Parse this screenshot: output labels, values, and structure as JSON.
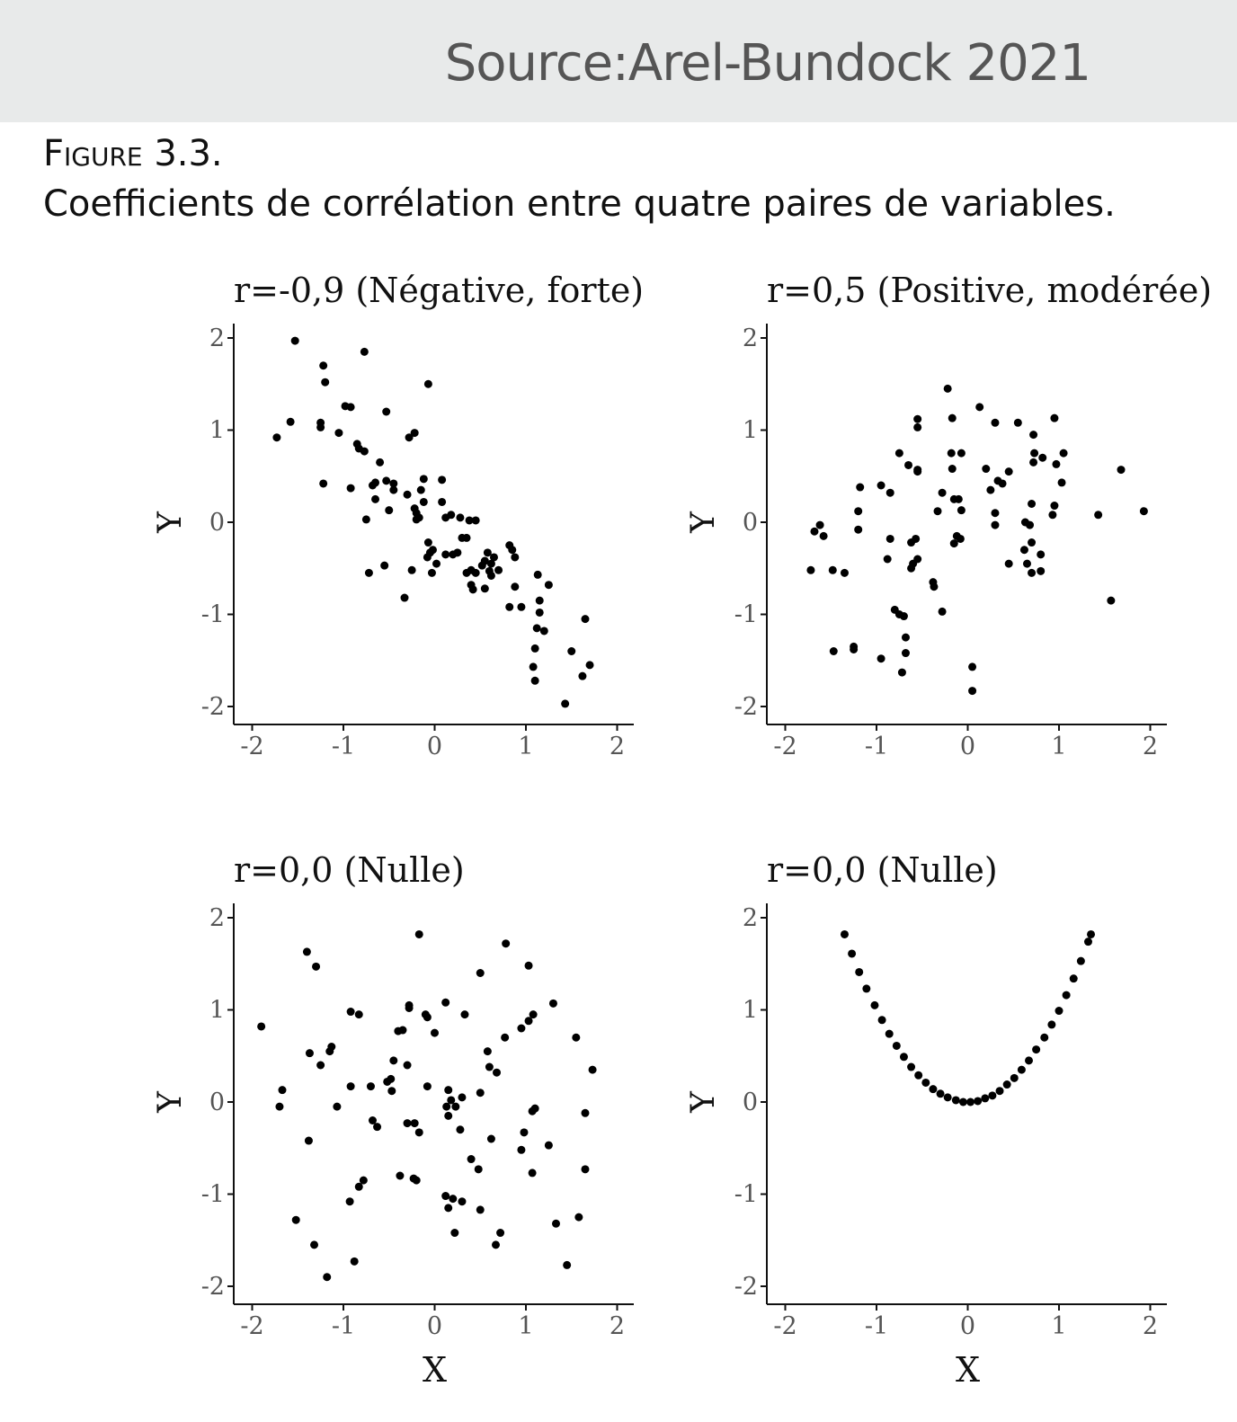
{
  "header": {
    "source": "Source:Arel-Bundock 2021"
  },
  "figure": {
    "label": "Figure 3.3.",
    "caption": "Coefficients de corrélation entre quatre paires de variables."
  },
  "chart_data": [
    {
      "type": "scatter",
      "title": "r=-0,9 (Négative, forte)",
      "xlabel": "",
      "ylabel": "Y",
      "xlim": [
        -2.2,
        2.2
      ],
      "ylim": [
        -2.2,
        2.2
      ],
      "xticks": [
        "-2",
        "-1",
        "0",
        "1",
        "2"
      ],
      "yticks": [
        "-2",
        "-1",
        "0",
        "1",
        "2"
      ],
      "grid": false,
      "points": [
        [
          -1.53,
          1.97
        ],
        [
          -0.77,
          1.85
        ],
        [
          -1.22,
          1.7
        ],
        [
          -1.2,
          1.52
        ],
        [
          -0.07,
          1.5
        ],
        [
          -0.98,
          1.26
        ],
        [
          -0.92,
          1.25
        ],
        [
          -0.53,
          1.2
        ],
        [
          -1.58,
          1.09
        ],
        [
          -1.25,
          1.08
        ],
        [
          -1.25,
          1.03
        ],
        [
          -1.05,
          0.97
        ],
        [
          -0.22,
          0.97
        ],
        [
          -1.73,
          0.92
        ],
        [
          -0.28,
          0.92
        ],
        [
          -0.85,
          0.85
        ],
        [
          -0.83,
          0.8
        ],
        [
          -0.77,
          0.77
        ],
        [
          -0.6,
          0.65
        ],
        [
          -0.12,
          0.47
        ],
        [
          0.08,
          0.46
        ],
        [
          -0.65,
          0.43
        ],
        [
          -0.53,
          0.45
        ],
        [
          -0.45,
          0.42
        ],
        [
          -1.22,
          0.42
        ],
        [
          -0.68,
          0.4
        ],
        [
          -0.92,
          0.37
        ],
        [
          -0.45,
          0.35
        ],
        [
          -0.15,
          0.35
        ],
        [
          -0.3,
          0.3
        ],
        [
          -0.65,
          0.25
        ],
        [
          -0.12,
          0.22
        ],
        [
          0.08,
          0.22
        ],
        [
          -0.22,
          0.15
        ],
        [
          -0.5,
          0.13
        ],
        [
          -0.2,
          0.1
        ],
        [
          0.18,
          0.08
        ],
        [
          0.28,
          0.05
        ],
        [
          -0.75,
          0.03
        ],
        [
          -0.2,
          0.03
        ],
        [
          -0.17,
          0.05
        ],
        [
          0.12,
          0.05
        ],
        [
          0.45,
          0.02
        ],
        [
          0.38,
          0.02
        ],
        [
          -0.07,
          -0.22
        ],
        [
          0.3,
          -0.17
        ],
        [
          0.35,
          -0.17
        ],
        [
          -0.02,
          -0.3
        ],
        [
          -0.05,
          -0.33
        ],
        [
          0.12,
          -0.35
        ],
        [
          0.2,
          -0.35
        ],
        [
          0.25,
          -0.33
        ],
        [
          0.58,
          -0.33
        ],
        [
          0.65,
          -0.38
        ],
        [
          0.55,
          -0.42
        ],
        [
          0.82,
          -0.25
        ],
        [
          0.85,
          -0.3
        ],
        [
          0.88,
          -0.38
        ],
        [
          -0.08,
          -0.38
        ],
        [
          0.02,
          -0.45
        ],
        [
          0.52,
          -0.47
        ],
        [
          0.62,
          -0.45
        ],
        [
          0.7,
          -0.52
        ],
        [
          0.6,
          -0.53
        ],
        [
          0.4,
          -0.52
        ],
        [
          0.45,
          -0.55
        ],
        [
          -0.55,
          -0.47
        ],
        [
          -0.25,
          -0.52
        ],
        [
          -0.72,
          -0.55
        ],
        [
          -0.03,
          -0.55
        ],
        [
          0.35,
          -0.55
        ],
        [
          0.62,
          -0.58
        ],
        [
          0.4,
          -0.68
        ],
        [
          0.55,
          -0.72
        ],
        [
          0.42,
          -0.73
        ],
        [
          0.88,
          -0.7
        ],
        [
          1.13,
          -0.57
        ],
        [
          1.25,
          -0.68
        ],
        [
          -0.33,
          -0.82
        ],
        [
          1.15,
          -0.85
        ],
        [
          0.82,
          -0.92
        ],
        [
          0.95,
          -0.92
        ],
        [
          1.15,
          -0.98
        ],
        [
          1.65,
          -1.05
        ],
        [
          1.12,
          -1.15
        ],
        [
          1.2,
          -1.18
        ],
        [
          1.1,
          -1.37
        ],
        [
          1.5,
          -1.4
        ],
        [
          1.7,
          -1.55
        ],
        [
          1.08,
          -1.57
        ],
        [
          1.62,
          -1.67
        ],
        [
          1.1,
          -1.72
        ],
        [
          1.43,
          -1.97
        ]
      ]
    },
    {
      "type": "scatter",
      "title": "r=0,5 (Positive, modérée)",
      "xlabel": "",
      "ylabel": "Y",
      "xlim": [
        -2.2,
        2.2
      ],
      "ylim": [
        -2.2,
        2.2
      ],
      "xticks": [
        "-2",
        "-1",
        "0",
        "1",
        "2"
      ],
      "yticks": [
        "-2",
        "-1",
        "0",
        "1",
        "2"
      ],
      "grid": false,
      "points": [
        [
          -0.22,
          1.45
        ],
        [
          0.13,
          1.25
        ],
        [
          -0.55,
          1.12
        ],
        [
          -0.17,
          1.13
        ],
        [
          0.95,
          1.13
        ],
        [
          0.3,
          1.08
        ],
        [
          0.55,
          1.08
        ],
        [
          -0.55,
          1.03
        ],
        [
          0.72,
          0.95
        ],
        [
          -0.75,
          0.75
        ],
        [
          -0.18,
          0.75
        ],
        [
          -0.07,
          0.75
        ],
        [
          0.73,
          0.75
        ],
        [
          1.05,
          0.75
        ],
        [
          0.82,
          0.7
        ],
        [
          -0.65,
          0.62
        ],
        [
          0.72,
          0.65
        ],
        [
          -0.17,
          0.58
        ],
        [
          0.2,
          0.58
        ],
        [
          0.97,
          0.63
        ],
        [
          -0.55,
          0.55
        ],
        [
          -0.55,
          0.57
        ],
        [
          0.45,
          0.55
        ],
        [
          1.68,
          0.57
        ],
        [
          0.33,
          0.45
        ],
        [
          0.38,
          0.42
        ],
        [
          1.03,
          0.43
        ],
        [
          -1.18,
          0.38
        ],
        [
          -0.95,
          0.4
        ],
        [
          -0.28,
          0.32
        ],
        [
          -0.85,
          0.32
        ],
        [
          0.25,
          0.35
        ],
        [
          -0.15,
          0.25
        ],
        [
          -0.1,
          0.25
        ],
        [
          0.7,
          0.2
        ],
        [
          0.95,
          0.18
        ],
        [
          -1.2,
          0.12
        ],
        [
          -0.33,
          0.12
        ],
        [
          -0.07,
          0.13
        ],
        [
          0.3,
          0.1
        ],
        [
          0.93,
          0.08
        ],
        [
          1.43,
          0.08
        ],
        [
          1.93,
          0.12
        ],
        [
          0.63,
          0.0
        ],
        [
          0.68,
          -0.03
        ],
        [
          0.3,
          -0.03
        ],
        [
          -1.62,
          -0.03
        ],
        [
          -1.68,
          -0.1
        ],
        [
          -1.2,
          -0.08
        ],
        [
          -1.58,
          -0.15
        ],
        [
          -0.85,
          -0.18
        ],
        [
          -0.57,
          -0.18
        ],
        [
          -0.62,
          -0.22
        ],
        [
          -0.12,
          -0.15
        ],
        [
          -0.08,
          -0.18
        ],
        [
          -0.15,
          -0.23
        ],
        [
          0.7,
          -0.22
        ],
        [
          0.62,
          -0.3
        ],
        [
          0.8,
          -0.35
        ],
        [
          -0.55,
          -0.4
        ],
        [
          -0.88,
          -0.4
        ],
        [
          -0.6,
          -0.45
        ],
        [
          -0.62,
          -0.5
        ],
        [
          0.45,
          -0.45
        ],
        [
          0.65,
          -0.45
        ],
        [
          -1.72,
          -0.52
        ],
        [
          -1.48,
          -0.52
        ],
        [
          -1.35,
          -0.55
        ],
        [
          0.7,
          -0.55
        ],
        [
          0.8,
          -0.53
        ],
        [
          -0.38,
          -0.65
        ],
        [
          -0.37,
          -0.7
        ],
        [
          1.57,
          -0.85
        ],
        [
          -0.8,
          -0.95
        ],
        [
          -0.28,
          -0.97
        ],
        [
          -0.75,
          -1.0
        ],
        [
          -0.7,
          -1.02
        ],
        [
          -0.68,
          -1.25
        ],
        [
          -1.47,
          -1.4
        ],
        [
          -1.25,
          -1.35
        ],
        [
          -1.25,
          -1.38
        ],
        [
          -0.68,
          -1.42
        ],
        [
          -0.95,
          -1.48
        ],
        [
          -0.72,
          -1.63
        ],
        [
          0.05,
          -1.57
        ],
        [
          0.05,
          -1.83
        ]
      ]
    },
    {
      "type": "scatter",
      "title": "r=0,0 (Nulle)",
      "xlabel": "X",
      "ylabel": "Y",
      "xlim": [
        -2.2,
        2.2
      ],
      "ylim": [
        -2.2,
        2.2
      ],
      "xticks": [
        "-2",
        "-1",
        "0",
        "1",
        "2"
      ],
      "yticks": [
        "-2",
        "-1",
        "0",
        "1",
        "2"
      ],
      "grid": false,
      "points": [
        [
          -0.17,
          1.82
        ],
        [
          0.78,
          1.72
        ],
        [
          -1.4,
          1.63
        ],
        [
          -1.3,
          1.47
        ],
        [
          1.03,
          1.48
        ],
        [
          0.5,
          1.4
        ],
        [
          0.12,
          1.08
        ],
        [
          1.3,
          1.07
        ],
        [
          -0.28,
          1.05
        ],
        [
          -0.28,
          1.02
        ],
        [
          -0.1,
          0.95
        ],
        [
          -0.08,
          0.92
        ],
        [
          -0.92,
          0.98
        ],
        [
          -0.83,
          0.95
        ],
        [
          0.33,
          0.95
        ],
        [
          1.08,
          0.95
        ],
        [
          1.03,
          0.88
        ],
        [
          0.95,
          0.8
        ],
        [
          -1.9,
          0.82
        ],
        [
          -0.4,
          0.77
        ],
        [
          -0.35,
          0.78
        ],
        [
          0.0,
          0.75
        ],
        [
          0.77,
          0.7
        ],
        [
          1.55,
          0.7
        ],
        [
          -1.13,
          0.6
        ],
        [
          -1.15,
          0.55
        ],
        [
          0.58,
          0.55
        ],
        [
          -1.37,
          0.53
        ],
        [
          -0.45,
          0.45
        ],
        [
          -1.25,
          0.4
        ],
        [
          -0.3,
          0.4
        ],
        [
          0.6,
          0.38
        ],
        [
          0.68,
          0.32
        ],
        [
          1.73,
          0.35
        ],
        [
          -0.48,
          0.25
        ],
        [
          -0.52,
          0.22
        ],
        [
          -0.7,
          0.17
        ],
        [
          -0.92,
          0.17
        ],
        [
          -0.08,
          0.17
        ],
        [
          0.15,
          0.13
        ],
        [
          -0.47,
          0.12
        ],
        [
          0.5,
          0.1
        ],
        [
          -1.67,
          0.13
        ],
        [
          0.3,
          0.05
        ],
        [
          0.18,
          0.02
        ],
        [
          -1.07,
          -0.05
        ],
        [
          0.13,
          -0.05
        ],
        [
          0.23,
          -0.05
        ],
        [
          -1.7,
          -0.05
        ],
        [
          1.1,
          -0.07
        ],
        [
          1.07,
          -0.1
        ],
        [
          1.65,
          -0.12
        ],
        [
          0.15,
          -0.15
        ],
        [
          -0.68,
          -0.2
        ],
        [
          -0.3,
          -0.23
        ],
        [
          -0.22,
          -0.23
        ],
        [
          -0.63,
          -0.27
        ],
        [
          0.28,
          -0.3
        ],
        [
          -0.17,
          -0.33
        ],
        [
          0.98,
          -0.33
        ],
        [
          -1.38,
          -0.42
        ],
        [
          0.62,
          -0.4
        ],
        [
          1.25,
          -0.47
        ],
        [
          0.95,
          -0.52
        ],
        [
          0.4,
          -0.62
        ],
        [
          0.48,
          -0.73
        ],
        [
          1.65,
          -0.73
        ],
        [
          1.07,
          -0.77
        ],
        [
          -0.38,
          -0.8
        ],
        [
          -0.23,
          -0.83
        ],
        [
          -0.2,
          -0.85
        ],
        [
          -0.78,
          -0.85
        ],
        [
          -0.83,
          -0.92
        ],
        [
          0.12,
          -1.02
        ],
        [
          0.2,
          -1.05
        ],
        [
          0.3,
          -1.08
        ],
        [
          -0.93,
          -1.08
        ],
        [
          0.15,
          -1.15
        ],
        [
          0.5,
          -1.17
        ],
        [
          -1.52,
          -1.28
        ],
        [
          1.58,
          -1.25
        ],
        [
          1.33,
          -1.32
        ],
        [
          0.22,
          -1.42
        ],
        [
          0.72,
          -1.42
        ],
        [
          -1.32,
          -1.55
        ],
        [
          0.67,
          -1.55
        ],
        [
          -0.88,
          -1.73
        ],
        [
          1.45,
          -1.77
        ],
        [
          -1.18,
          -1.9
        ]
      ]
    },
    {
      "type": "scatter",
      "title": "r=0,0 (Nulle)",
      "xlabel": "X",
      "ylabel": "Y",
      "xlim": [
        -2.2,
        2.2
      ],
      "ylim": [
        -2.2,
        2.2
      ],
      "xticks": [
        "-2",
        "-1",
        "0",
        "1",
        "2"
      ],
      "yticks": [
        "-2",
        "-1",
        "0",
        "1",
        "2"
      ],
      "grid": false,
      "points": [
        [
          -1.35,
          1.82
        ],
        [
          -1.27,
          1.61
        ],
        [
          -1.19,
          1.41
        ],
        [
          -1.11,
          1.23
        ],
        [
          -1.02,
          1.05
        ],
        [
          -0.94,
          0.89
        ],
        [
          -0.86,
          0.74
        ],
        [
          -0.78,
          0.61
        ],
        [
          -0.7,
          0.49
        ],
        [
          -0.62,
          0.38
        ],
        [
          -0.54,
          0.29
        ],
        [
          -0.46,
          0.21
        ],
        [
          -0.38,
          0.14
        ],
        [
          -0.3,
          0.09
        ],
        [
          -0.22,
          0.05
        ],
        [
          -0.13,
          0.02
        ],
        [
          -0.05,
          0.0
        ],
        [
          0.03,
          0.0
        ],
        [
          0.11,
          0.01
        ],
        [
          0.19,
          0.04
        ],
        [
          0.27,
          0.07
        ],
        [
          0.35,
          0.12
        ],
        [
          0.43,
          0.19
        ],
        [
          0.51,
          0.26
        ],
        [
          0.59,
          0.35
        ],
        [
          0.67,
          0.45
        ],
        [
          0.75,
          0.57
        ],
        [
          0.84,
          0.7
        ],
        [
          0.92,
          0.84
        ],
        [
          1.0,
          0.99
        ],
        [
          1.08,
          1.16
        ],
        [
          1.16,
          1.34
        ],
        [
          1.24,
          1.53
        ],
        [
          1.32,
          1.74
        ],
        [
          1.35,
          1.82
        ]
      ]
    }
  ]
}
